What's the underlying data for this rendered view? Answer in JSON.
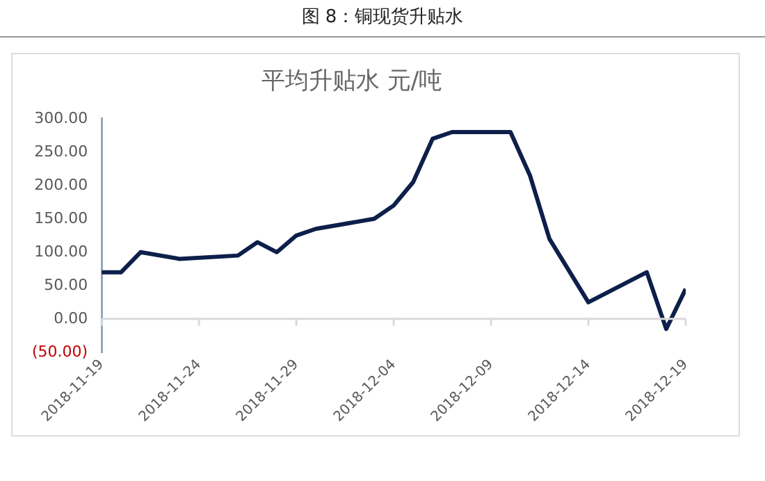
{
  "chart_data": {
    "type": "line",
    "title": "图 8：铜现货升贴水",
    "subtitle": "平均升贴水 元/吨",
    "x": [
      "2018-11-19",
      "2018-11-20",
      "2018-11-21",
      "2018-11-23",
      "2018-11-26",
      "2018-11-27",
      "2018-11-28",
      "2018-11-29",
      "2018-11-30",
      "2018-12-03",
      "2018-12-04",
      "2018-12-05",
      "2018-12-06",
      "2018-12-07",
      "2018-12-10",
      "2018-12-11",
      "2018-12-12",
      "2018-12-14",
      "2018-12-17",
      "2018-12-18",
      "2018-12-19"
    ],
    "series": [
      {
        "color": "#0d1f4a",
        "values": [
          70,
          70,
          100,
          90,
          95,
          115,
          100,
          125,
          135,
          150,
          170,
          205,
          270,
          280,
          280,
          215,
          120,
          25,
          70,
          -15,
          45
        ]
      }
    ],
    "xlim": [
      "2018-11-19",
      "2018-12-19"
    ],
    "xticks": [
      "2018-11-19",
      "2018-11-24",
      "2018-11-29",
      "2018-12-04",
      "2018-12-09",
      "2018-12-14",
      "2018-12-19"
    ],
    "ylim": [
      -50,
      300
    ],
    "yticks": [
      {
        "value": -50,
        "label": "(50.00)"
      },
      {
        "value": 0,
        "label": "0.00"
      },
      {
        "value": 50,
        "label": "50.00"
      },
      {
        "value": 100,
        "label": "100.00"
      },
      {
        "value": 150,
        "label": "150.00"
      },
      {
        "value": 200,
        "label": "200.00"
      },
      {
        "value": 250,
        "label": "250.00"
      },
      {
        "value": 300,
        "label": "300.00"
      }
    ],
    "legend": false,
    "marker": "none",
    "line_style": "solid"
  }
}
